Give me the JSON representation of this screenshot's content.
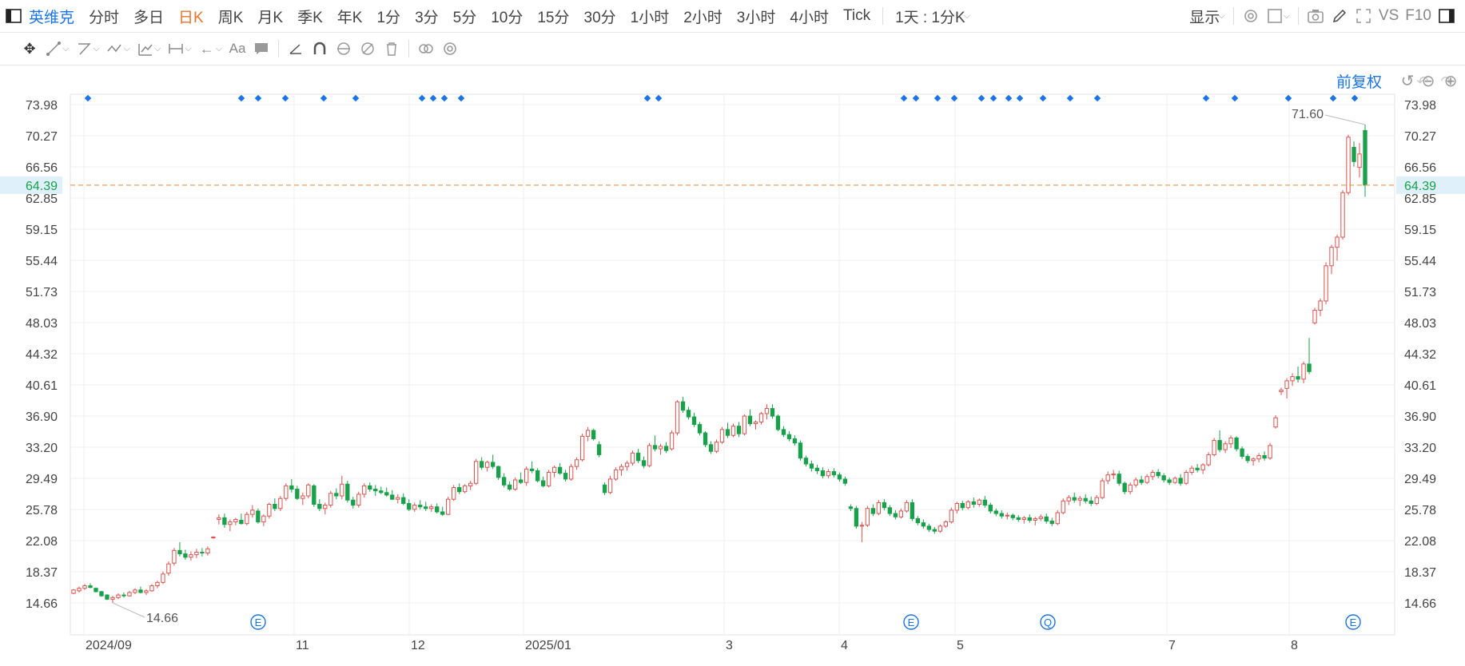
{
  "toolbar": {
    "stock_name": "英维克",
    "periods": [
      "分时",
      "多日",
      "日K",
      "周K",
      "月K",
      "季K",
      "年K",
      "1分",
      "3分",
      "5分",
      "10分",
      "15分",
      "30分",
      "1小时",
      "2小时",
      "3小时",
      "4小时",
      "Tick"
    ],
    "active_period": "日K",
    "multi_period_label": "1天 : 1分K",
    "display_label": "显示",
    "vs_label": "VS",
    "f10_label": "F10"
  },
  "adjust_label": "前复权",
  "colors": {
    "up": "#d9534f",
    "down": "#18a14a",
    "accent": "#1a73e8",
    "active": "#e8742b",
    "current_line": "#e8a160",
    "current_bg": "#dff0fb"
  },
  "chart_data": {
    "type": "candlestick",
    "y_ticks": [
      "73.98",
      "70.27",
      "66.56",
      "62.85",
      "59.15",
      "55.44",
      "51.73",
      "48.03",
      "44.32",
      "40.61",
      "36.90",
      "33.20",
      "29.49",
      "25.78",
      "22.08",
      "18.37",
      "14.66"
    ],
    "ylim": [
      14.66,
      73.98
    ],
    "x_ticks": [
      "2024/09",
      "11",
      "12",
      "2025/01",
      "3",
      "4",
      "5",
      "7",
      "8"
    ],
    "current_price": "64.39",
    "high_label": "71.60",
    "low_label": "14.66",
    "event_markers": [
      "E",
      "E",
      "Q",
      "E"
    ],
    "ohlc": [
      [
        15.8,
        16.3,
        15.7,
        16.2
      ],
      [
        16.1,
        16.6,
        15.9,
        16.4
      ],
      [
        16.4,
        16.9,
        16.2,
        16.7
      ],
      [
        16.7,
        17.0,
        16.4,
        16.5
      ],
      [
        16.4,
        16.5,
        15.9,
        16.0
      ],
      [
        16.0,
        16.1,
        15.4,
        15.5
      ],
      [
        15.6,
        15.7,
        15.0,
        15.1
      ],
      [
        15.1,
        15.5,
        14.66,
        15.3
      ],
      [
        15.3,
        15.8,
        15.1,
        15.6
      ],
      [
        15.6,
        15.9,
        15.3,
        15.5
      ],
      [
        15.5,
        16.1,
        15.4,
        15.9
      ],
      [
        15.9,
        16.4,
        15.7,
        16.2
      ],
      [
        16.2,
        16.6,
        15.8,
        15.9
      ],
      [
        15.9,
        16.3,
        15.6,
        16.1
      ],
      [
        16.1,
        16.9,
        16.0,
        16.7
      ],
      [
        16.7,
        17.3,
        16.4,
        17.1
      ],
      [
        17.1,
        18.4,
        16.9,
        18.1
      ],
      [
        18.2,
        19.6,
        17.9,
        19.3
      ],
      [
        19.4,
        21.2,
        19.1,
        20.9
      ],
      [
        20.9,
        21.9,
        20.2,
        20.5
      ],
      [
        20.5,
        21.0,
        19.8,
        20.1
      ],
      [
        20.1,
        20.8,
        19.7,
        20.4
      ],
      [
        20.4,
        21.1,
        20.0,
        20.7
      ],
      [
        20.7,
        21.2,
        20.2,
        20.6
      ],
      [
        20.6,
        21.4,
        20.3,
        21.1
      ],
      [
        22.4,
        22.6,
        22.3,
        22.5
      ],
      [
        24.6,
        25.2,
        24.0,
        24.8
      ],
      [
        24.8,
        25.3,
        23.6,
        24.0
      ],
      [
        24.0,
        24.6,
        23.2,
        24.3
      ],
      [
        24.3,
        24.8,
        23.9,
        24.6
      ],
      [
        24.5,
        25.3,
        24.0,
        24.1
      ],
      [
        24.1,
        25.5,
        23.9,
        25.2
      ],
      [
        25.2,
        26.3,
        24.8,
        25.7
      ],
      [
        25.6,
        25.9,
        24.1,
        24.3
      ],
      [
        24.3,
        25.2,
        23.8,
        25.0
      ],
      [
        25.0,
        26.6,
        24.7,
        26.4
      ],
      [
        26.4,
        27.1,
        25.6,
        25.9
      ],
      [
        25.9,
        27.4,
        25.6,
        27.1
      ],
      [
        27.1,
        28.9,
        26.8,
        28.6
      ],
      [
        28.6,
        29.4,
        27.8,
        28.2
      ],
      [
        28.2,
        28.6,
        26.9,
        27.1
      ],
      [
        27.1,
        27.8,
        26.3,
        27.4
      ],
      [
        27.4,
        28.9,
        27.1,
        28.7
      ],
      [
        28.6,
        28.8,
        26.1,
        26.4
      ],
      [
        26.4,
        27.0,
        25.6,
        25.9
      ],
      [
        25.9,
        26.6,
        25.2,
        26.3
      ],
      [
        26.3,
        28.0,
        26.0,
        27.7
      ],
      [
        27.7,
        28.3,
        27.0,
        27.4
      ],
      [
        27.4,
        29.8,
        27.0,
        28.8
      ],
      [
        28.8,
        29.2,
        26.6,
        26.9
      ],
      [
        26.9,
        27.3,
        25.9,
        26.3
      ],
      [
        26.3,
        27.9,
        26.0,
        27.6
      ],
      [
        27.6,
        28.9,
        27.2,
        28.6
      ],
      [
        28.6,
        29.0,
        27.9,
        28.2
      ],
      [
        28.2,
        28.7,
        27.4,
        28.0
      ],
      [
        28.0,
        28.5,
        27.6,
        27.8
      ],
      [
        27.8,
        28.4,
        27.3,
        27.5
      ],
      [
        27.5,
        28.1,
        26.9,
        27.0
      ],
      [
        27.0,
        27.6,
        26.5,
        27.2
      ],
      [
        27.2,
        27.7,
        26.3,
        26.5
      ],
      [
        26.5,
        27.0,
        25.6,
        25.8
      ],
      [
        25.8,
        26.6,
        25.5,
        26.3
      ],
      [
        26.3,
        26.9,
        25.8,
        26.1
      ],
      [
        26.1,
        26.7,
        25.6,
        25.9
      ],
      [
        25.9,
        26.4,
        25.5,
        26.1
      ],
      [
        26.1,
        26.5,
        25.3,
        25.5
      ],
      [
        25.5,
        26.1,
        25.0,
        25.2
      ],
      [
        25.2,
        27.3,
        25.1,
        27.0
      ],
      [
        27.0,
        28.7,
        26.8,
        28.4
      ],
      [
        28.4,
        28.9,
        27.6,
        27.9
      ],
      [
        27.9,
        28.8,
        27.7,
        28.6
      ],
      [
        28.6,
        29.2,
        28.1,
        28.9
      ],
      [
        28.9,
        31.8,
        28.7,
        31.5
      ],
      [
        31.5,
        32.0,
        30.5,
        30.8
      ],
      [
        30.8,
        31.6,
        30.3,
        31.4
      ],
      [
        31.4,
        32.3,
        30.6,
        30.9
      ],
      [
        30.9,
        31.0,
        29.3,
        29.6
      ],
      [
        29.6,
        30.1,
        28.4,
        28.7
      ],
      [
        28.7,
        29.1,
        28.0,
        28.2
      ],
      [
        28.2,
        29.6,
        28.0,
        29.3
      ],
      [
        29.3,
        30.2,
        28.8,
        29.0
      ],
      [
        29.0,
        30.9,
        28.6,
        30.6
      ],
      [
        30.6,
        31.5,
        30.1,
        30.4
      ],
      [
        30.4,
        30.7,
        29.0,
        29.2
      ],
      [
        29.2,
        29.7,
        28.4,
        28.6
      ],
      [
        28.6,
        30.5,
        28.4,
        30.2
      ],
      [
        30.2,
        31.0,
        29.6,
        30.8
      ],
      [
        30.8,
        31.3,
        29.9,
        30.1
      ],
      [
        30.1,
        30.5,
        29.1,
        29.4
      ],
      [
        29.4,
        31.2,
        29.2,
        30.9
      ],
      [
        30.9,
        32.0,
        30.5,
        31.7
      ],
      [
        31.7,
        34.8,
        31.5,
        34.5
      ],
      [
        34.5,
        35.6,
        33.9,
        35.2
      ],
      [
        35.2,
        35.4,
        34.0,
        34.2
      ],
      [
        33.5,
        33.9,
        32.0,
        32.3
      ],
      [
        28.7,
        29.0,
        27.5,
        27.8
      ],
      [
        27.8,
        29.8,
        27.6,
        29.4
      ],
      [
        29.4,
        30.8,
        29.2,
        30.5
      ],
      [
        30.5,
        31.2,
        29.8,
        30.9
      ],
      [
        30.9,
        31.6,
        30.4,
        31.3
      ],
      [
        31.3,
        32.8,
        31.0,
        32.5
      ],
      [
        32.5,
        33.0,
        31.3,
        31.6
      ],
      [
        31.6,
        32.1,
        30.7,
        31.0
      ],
      [
        31.0,
        33.7,
        30.8,
        33.4
      ],
      [
        33.4,
        34.6,
        32.7,
        33.0
      ],
      [
        33.0,
        33.6,
        32.3,
        33.3
      ],
      [
        33.3,
        33.8,
        32.5,
        32.8
      ],
      [
        33.0,
        35.2,
        32.8,
        34.9
      ],
      [
        34.9,
        38.8,
        34.6,
        38.6
      ],
      [
        38.6,
        39.2,
        37.3,
        37.6
      ],
      [
        37.6,
        38.0,
        36.5,
        36.8
      ],
      [
        36.8,
        37.3,
        35.6,
        35.9
      ],
      [
        35.9,
        36.2,
        34.6,
        34.9
      ],
      [
        34.9,
        35.1,
        33.2,
        33.5
      ],
      [
        33.5,
        33.9,
        32.4,
        32.7
      ],
      [
        32.7,
        34.1,
        32.5,
        33.8
      ],
      [
        33.8,
        35.6,
        33.6,
        35.3
      ],
      [
        35.3,
        36.1,
        34.3,
        34.6
      ],
      [
        34.6,
        36.0,
        34.4,
        35.7
      ],
      [
        35.7,
        36.2,
        34.4,
        34.8
      ],
      [
        34.8,
        37.1,
        34.6,
        36.9
      ],
      [
        36.9,
        37.7,
        35.7,
        36.0
      ],
      [
        36.0,
        36.4,
        35.3,
        36.2
      ],
      [
        36.2,
        37.4,
        35.9,
        37.2
      ],
      [
        37.2,
        38.3,
        36.5,
        37.8
      ],
      [
        37.8,
        38.3,
        36.6,
        36.9
      ],
      [
        36.9,
        37.1,
        35.1,
        35.3
      ],
      [
        35.3,
        35.7,
        34.4,
        34.7
      ],
      [
        34.7,
        35.1,
        33.9,
        34.2
      ],
      [
        34.2,
        34.6,
        33.4,
        33.7
      ],
      [
        33.7,
        34.0,
        31.6,
        31.9
      ],
      [
        31.9,
        32.2,
        30.9,
        31.2
      ],
      [
        31.2,
        31.6,
        30.3,
        30.7
      ],
      [
        30.7,
        31.1,
        30.0,
        30.4
      ],
      [
        30.4,
        30.8,
        29.5,
        29.8
      ],
      [
        29.8,
        30.6,
        29.5,
        30.3
      ],
      [
        30.3,
        30.7,
        29.6,
        29.9
      ],
      [
        29.9,
        30.2,
        29.1,
        29.4
      ],
      [
        29.4,
        29.7,
        28.6,
        28.9
      ],
      [
        26.1,
        26.4,
        25.6,
        25.9
      ],
      [
        25.9,
        26.2,
        23.5,
        23.8
      ],
      [
        23.8,
        24.3,
        21.9,
        23.9
      ],
      [
        23.9,
        26.2,
        23.7,
        25.9
      ],
      [
        25.9,
        26.4,
        25.0,
        25.3
      ],
      [
        25.3,
        26.9,
        25.1,
        26.6
      ],
      [
        26.6,
        27.0,
        25.7,
        26.0
      ],
      [
        26.0,
        26.3,
        25.0,
        25.3
      ],
      [
        25.3,
        25.7,
        24.6,
        24.9
      ],
      [
        24.9,
        25.9,
        24.7,
        25.6
      ],
      [
        25.6,
        26.9,
        25.4,
        26.6
      ],
      [
        26.6,
        27.0,
        24.4,
        24.7
      ],
      [
        24.7,
        25.0,
        23.9,
        24.2
      ],
      [
        24.2,
        24.6,
        23.5,
        23.8
      ],
      [
        23.8,
        24.1,
        23.1,
        23.4
      ],
      [
        23.4,
        23.7,
        22.9,
        23.2
      ],
      [
        23.2,
        24.0,
        23.0,
        23.8
      ],
      [
        23.8,
        24.5,
        23.6,
        24.3
      ],
      [
        24.3,
        26.0,
        24.1,
        25.7
      ],
      [
        25.7,
        26.7,
        25.3,
        26.5
      ],
      [
        26.5,
        26.8,
        25.7,
        26.0
      ],
      [
        26.0,
        26.9,
        25.8,
        26.7
      ],
      [
        26.7,
        27.2,
        26.0,
        26.4
      ],
      [
        26.4,
        27.1,
        26.1,
        26.9
      ],
      [
        26.9,
        27.4,
        26.0,
        26.3
      ],
      [
        26.3,
        26.6,
        25.3,
        25.6
      ],
      [
        25.6,
        25.9,
        25.0,
        25.3
      ],
      [
        25.3,
        25.7,
        24.7,
        25.0
      ],
      [
        25.0,
        25.4,
        24.6,
        25.1
      ],
      [
        25.1,
        25.3,
        24.5,
        24.8
      ],
      [
        24.8,
        25.1,
        24.3,
        24.6
      ],
      [
        24.6,
        25.0,
        24.1,
        24.8
      ],
      [
        24.8,
        25.2,
        24.2,
        24.5
      ],
      [
        24.5,
        24.9,
        23.9,
        24.7
      ],
      [
        24.7,
        25.2,
        24.4,
        24.9
      ],
      [
        24.9,
        25.3,
        24.1,
        24.4
      ],
      [
        24.4,
        24.8,
        23.8,
        24.1
      ],
      [
        24.1,
        25.7,
        23.9,
        25.4
      ],
      [
        25.4,
        27.1,
        25.2,
        26.8
      ],
      [
        26.8,
        27.5,
        26.3,
        27.2
      ],
      [
        27.2,
        27.8,
        26.6,
        26.9
      ],
      [
        26.9,
        27.4,
        26.2,
        27.1
      ],
      [
        27.1,
        27.6,
        26.5,
        26.8
      ],
      [
        26.8,
        27.3,
        26.2,
        26.5
      ],
      [
        26.5,
        27.5,
        26.3,
        27.2
      ],
      [
        27.2,
        29.5,
        27.0,
        29.2
      ],
      [
        29.2,
        30.3,
        28.8,
        29.9
      ],
      [
        29.9,
        30.5,
        29.4,
        30.0
      ],
      [
        30.0,
        30.4,
        28.6,
        28.9
      ],
      [
        28.9,
        29.1,
        27.6,
        27.9
      ],
      [
        27.9,
        29.0,
        27.6,
        28.7
      ],
      [
        28.7,
        29.6,
        28.4,
        29.3
      ],
      [
        29.3,
        29.8,
        28.7,
        29.0
      ],
      [
        29.0,
        30.0,
        28.8,
        29.7
      ],
      [
        29.7,
        30.5,
        29.3,
        30.2
      ],
      [
        30.2,
        30.6,
        29.5,
        29.8
      ],
      [
        29.8,
        30.1,
        29.0,
        29.3
      ],
      [
        29.3,
        29.6,
        28.7,
        29.0
      ],
      [
        29.0,
        29.7,
        28.8,
        29.5
      ],
      [
        29.5,
        30.0,
        28.6,
        28.9
      ],
      [
        28.9,
        30.5,
        28.7,
        30.2
      ],
      [
        30.2,
        31.0,
        29.9,
        30.7
      ],
      [
        30.7,
        31.2,
        30.2,
        30.5
      ],
      [
        30.5,
        31.3,
        30.0,
        31.1
      ],
      [
        31.1,
        32.6,
        30.9,
        32.3
      ],
      [
        32.3,
        34.3,
        32.1,
        34.0
      ],
      [
        34.0,
        35.2,
        32.6,
        32.9
      ],
      [
        32.9,
        33.9,
        32.5,
        33.6
      ],
      [
        33.6,
        34.6,
        33.1,
        34.3
      ],
      [
        34.3,
        34.5,
        32.7,
        33.0
      ],
      [
        33.0,
        33.3,
        31.8,
        32.1
      ],
      [
        32.1,
        32.4,
        31.3,
        31.6
      ],
      [
        31.6,
        32.0,
        31.0,
        31.8
      ],
      [
        31.8,
        32.5,
        31.4,
        32.2
      ],
      [
        32.2,
        32.7,
        31.6,
        31.9
      ],
      [
        31.9,
        33.7,
        31.7,
        33.4
      ],
      [
        35.6,
        37.0,
        35.4,
        36.7
      ],
      [
        39.8,
        40.3,
        39.4,
        40.0
      ],
      [
        40.2,
        41.4,
        39.0,
        41.1
      ],
      [
        41.1,
        42.0,
        40.5,
        41.6
      ],
      [
        41.6,
        42.8,
        40.9,
        41.3
      ],
      [
        41.3,
        43.4,
        40.8,
        43.1
      ],
      [
        43.1,
        46.2,
        41.9,
        42.2
      ],
      [
        48.0,
        49.8,
        47.8,
        49.5
      ],
      [
        49.5,
        50.9,
        48.8,
        50.6
      ],
      [
        50.6,
        55.2,
        50.2,
        54.8
      ],
      [
        54.8,
        57.3,
        53.8,
        57.0
      ],
      [
        57.0,
        58.5,
        55.4,
        58.2
      ],
      [
        58.2,
        63.8,
        57.9,
        63.5
      ],
      [
        63.5,
        70.4,
        63.2,
        70.1
      ],
      [
        68.9,
        69.6,
        66.6,
        67.2
      ],
      [
        66.5,
        69.4,
        65.3,
        68.1
      ],
      [
        70.9,
        71.6,
        63.0,
        64.39
      ]
    ]
  }
}
